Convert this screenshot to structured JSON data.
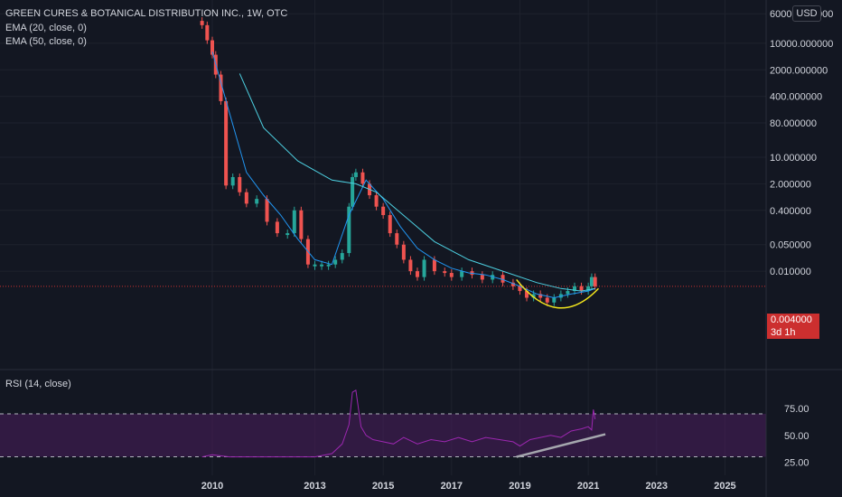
{
  "legend": {
    "symbol": "GREEN CURES & BOTANICAL DISTRIBUTION INC., 1W, OTC",
    "ema20": "EMA (20, close, 0)",
    "ema50": "EMA (50, close, 0)",
    "rsi": "RSI (14, close)"
  },
  "scale_button": "USD",
  "price_tag": {
    "price": "0.004000",
    "countdown": "3d 1h"
  },
  "colors": {
    "background": "#131722",
    "up": "#26a69a",
    "down": "#ef5350",
    "ema20": "#2196f3",
    "ema50": "#4dd0e1",
    "rsi_line": "#9c27b0",
    "rsi_band": "#4a1e5c",
    "curve": "#f2e51d",
    "trend": "#a5a7ae",
    "last_price": "#cc2f2f"
  },
  "chart_data": [
    {
      "type": "candlestick",
      "scale": "log",
      "y_tick_labels": [
        "60000.000000",
        "10000.000000",
        "2000.000000",
        "400.000000",
        "80.000000",
        "10.000000",
        "2.000000",
        "0.400000",
        "0.050000",
        "0.010000"
      ],
      "x_tick_labels": [
        "2010",
        "2013",
        "2015",
        "2017",
        "2019",
        "2021",
        "2023",
        "2025"
      ],
      "last_price": 0.004,
      "series": [
        {
          "name": "Price",
          "x": [
            2009.7,
            2009.85,
            2010.0,
            2010.1,
            2010.25,
            2010.4,
            2010.6,
            2010.8,
            2011.0,
            2011.3,
            2011.6,
            2011.9,
            2012.2,
            2012.4,
            2012.6,
            2012.8,
            2013.0,
            2013.2,
            2013.4,
            2013.6,
            2013.8,
            2014.0,
            2014.1,
            2014.2,
            2014.4,
            2014.6,
            2014.8,
            2015.0,
            2015.2,
            2015.4,
            2015.6,
            2015.8,
            2016.0,
            2016.2,
            2016.5,
            2016.8,
            2017.0,
            2017.3,
            2017.6,
            2017.9,
            2018.2,
            2018.5,
            2018.8,
            2019.0,
            2019.2,
            2019.4,
            2019.6,
            2019.8,
            2020.0,
            2020.2,
            2020.4,
            2020.6,
            2020.8,
            2021.0,
            2021.1,
            2021.2
          ],
          "close": [
            30000,
            12000,
            5000,
            1500,
            300,
            1.8,
            3,
            1.2,
            0.6,
            0.8,
            0.2,
            0.1,
            0.1,
            0.4,
            0.07,
            0.015,
            0.015,
            0.015,
            0.015,
            0.02,
            0.03,
            0.5,
            3,
            4,
            2,
            1.0,
            0.5,
            0.3,
            0.1,
            0.05,
            0.02,
            0.01,
            0.007,
            0.02,
            0.01,
            0.009,
            0.007,
            0.01,
            0.008,
            0.006,
            0.008,
            0.005,
            0.004,
            0.003,
            0.002,
            0.0025,
            0.002,
            0.0015,
            0.002,
            0.0025,
            0.003,
            0.004,
            0.003,
            0.004,
            0.007,
            0.004
          ]
        },
        {
          "name": "EMA (20, close, 0)",
          "x": [
            2010.0,
            2010.5,
            2011.0,
            2011.5,
            2012.0,
            2012.5,
            2013.0,
            2013.5,
            2014.0,
            2014.5,
            2015.0,
            2015.5,
            2016.0,
            2016.5,
            2017.0,
            2017.5,
            2018.0,
            2018.5,
            2019.0,
            2019.5,
            2020.0,
            2020.5,
            2021.0,
            2021.2
          ],
          "y": [
            6000,
            150,
            4,
            1.0,
            0.3,
            0.07,
            0.02,
            0.015,
            0.3,
            2.5,
            0.8,
            0.15,
            0.04,
            0.02,
            0.012,
            0.009,
            0.008,
            0.006,
            0.004,
            0.0025,
            0.002,
            0.0025,
            0.003,
            0.0035
          ]
        },
        {
          "name": "EMA (50, close, 0)",
          "x": [
            2010.8,
            2011.5,
            2012.5,
            2013.5,
            2014.2,
            2014.8,
            2015.5,
            2016.5,
            2017.5,
            2018.5,
            2019.5,
            2020.2,
            2020.8,
            2021.2
          ],
          "y": [
            1600,
            60,
            8,
            2.5,
            2.0,
            1.2,
            0.35,
            0.06,
            0.02,
            0.01,
            0.005,
            0.0035,
            0.003,
            0.0035
          ]
        }
      ]
    },
    {
      "type": "line",
      "y_tick_labels": [
        "75.00",
        "50.00",
        "25.00"
      ],
      "x": [
        2009.7,
        2010.0,
        2010.5,
        2011.0,
        2011.5,
        2012.0,
        2012.5,
        2013.0,
        2013.5,
        2013.8,
        2014.0,
        2014.1,
        2014.2,
        2014.35,
        2014.5,
        2014.7,
        2015.0,
        2015.3,
        2015.6,
        2016.0,
        2016.4,
        2016.8,
        2017.2,
        2017.6,
        2018.0,
        2018.4,
        2018.8,
        2019.0,
        2019.3,
        2019.6,
        2019.9,
        2020.2,
        2020.5,
        2020.8,
        2021.0,
        2021.1,
        2021.15,
        2021.2
      ],
      "y": [
        30,
        32,
        30,
        30,
        30,
        30,
        30,
        30,
        33,
        42,
        60,
        90,
        92,
        58,
        50,
        46,
        44,
        42,
        48,
        42,
        46,
        44,
        48,
        44,
        48,
        46,
        44,
        40,
        46,
        48,
        50,
        48,
        54,
        56,
        58,
        55,
        74,
        65
      ],
      "band": [
        30,
        70
      ]
    }
  ]
}
